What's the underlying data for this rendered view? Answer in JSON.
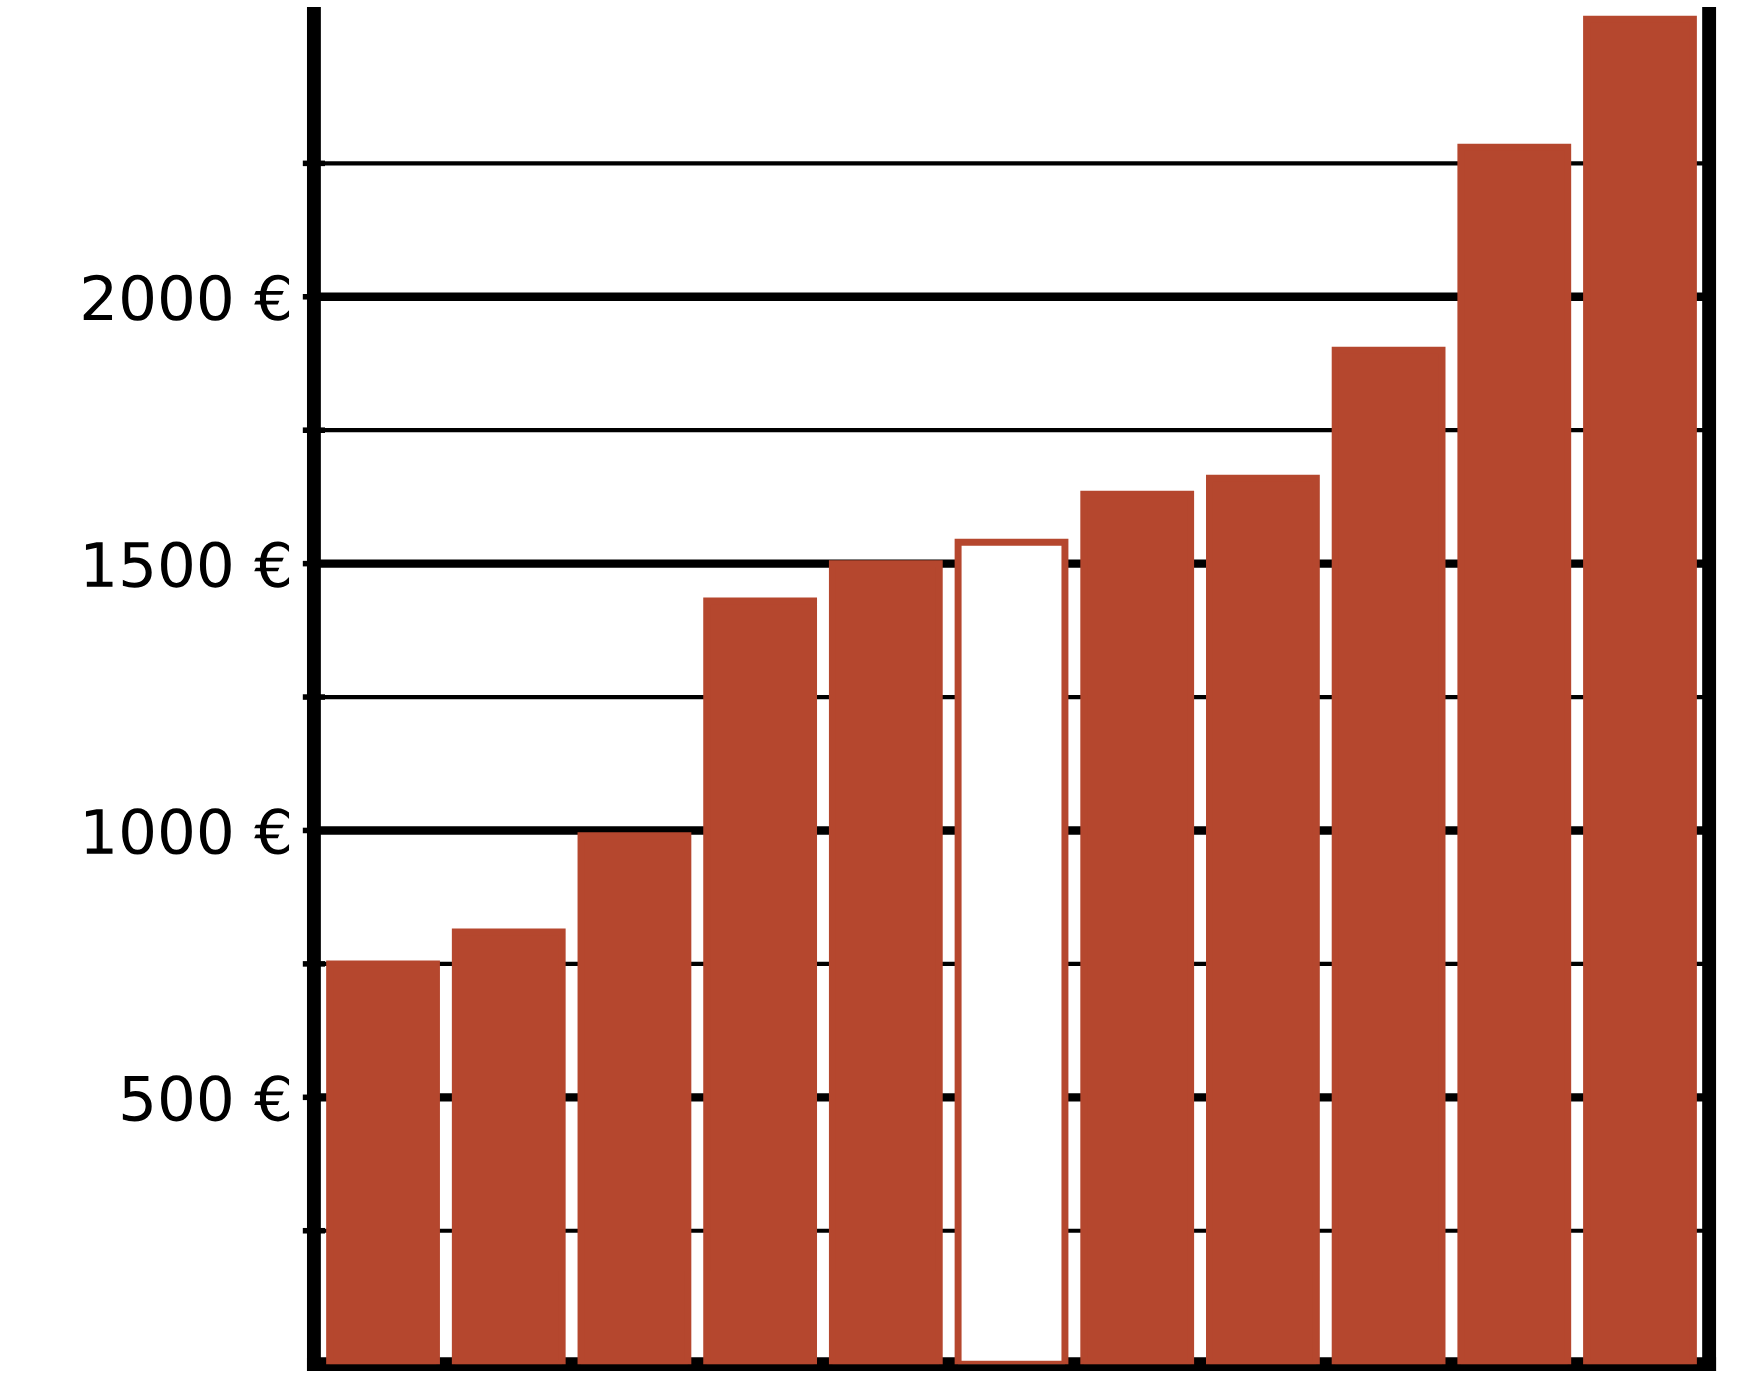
{
  "chart_data": {
    "type": "bar",
    "categories": [
      null,
      null,
      null,
      null,
      null,
      null,
      null,
      null,
      null,
      null,
      null
    ],
    "values": [
      750,
      810,
      990,
      1430,
      1500,
      1540,
      1630,
      1660,
      1900,
      2280,
      2520
    ],
    "color": "#b5472e",
    "colors": [
      "#b5472e",
      "#b5472e",
      "#b5472e",
      "#b5472e",
      "#b5472e",
      "#ffffff",
      "#b5472e",
      "#b5472e",
      "#b5472e",
      "#b5472e",
      "#b5472e"
    ],
    "ylim": [
      0,
      2530
    ],
    "yticks": [
      {
        "value": 250,
        "label": null
      },
      {
        "value": 500,
        "label": "500 €"
      },
      {
        "value": 750,
        "label": null
      },
      {
        "value": 1000,
        "label": "1000 €"
      },
      {
        "value": 1250,
        "label": null
      },
      {
        "value": 1500,
        "label": "1500 €"
      },
      {
        "value": 1750,
        "label": null
      },
      {
        "value": 2000,
        "label": "2000 €"
      },
      {
        "value": 2250,
        "label": null
      }
    ],
    "grid": "y",
    "tick_labels": "y"
  }
}
